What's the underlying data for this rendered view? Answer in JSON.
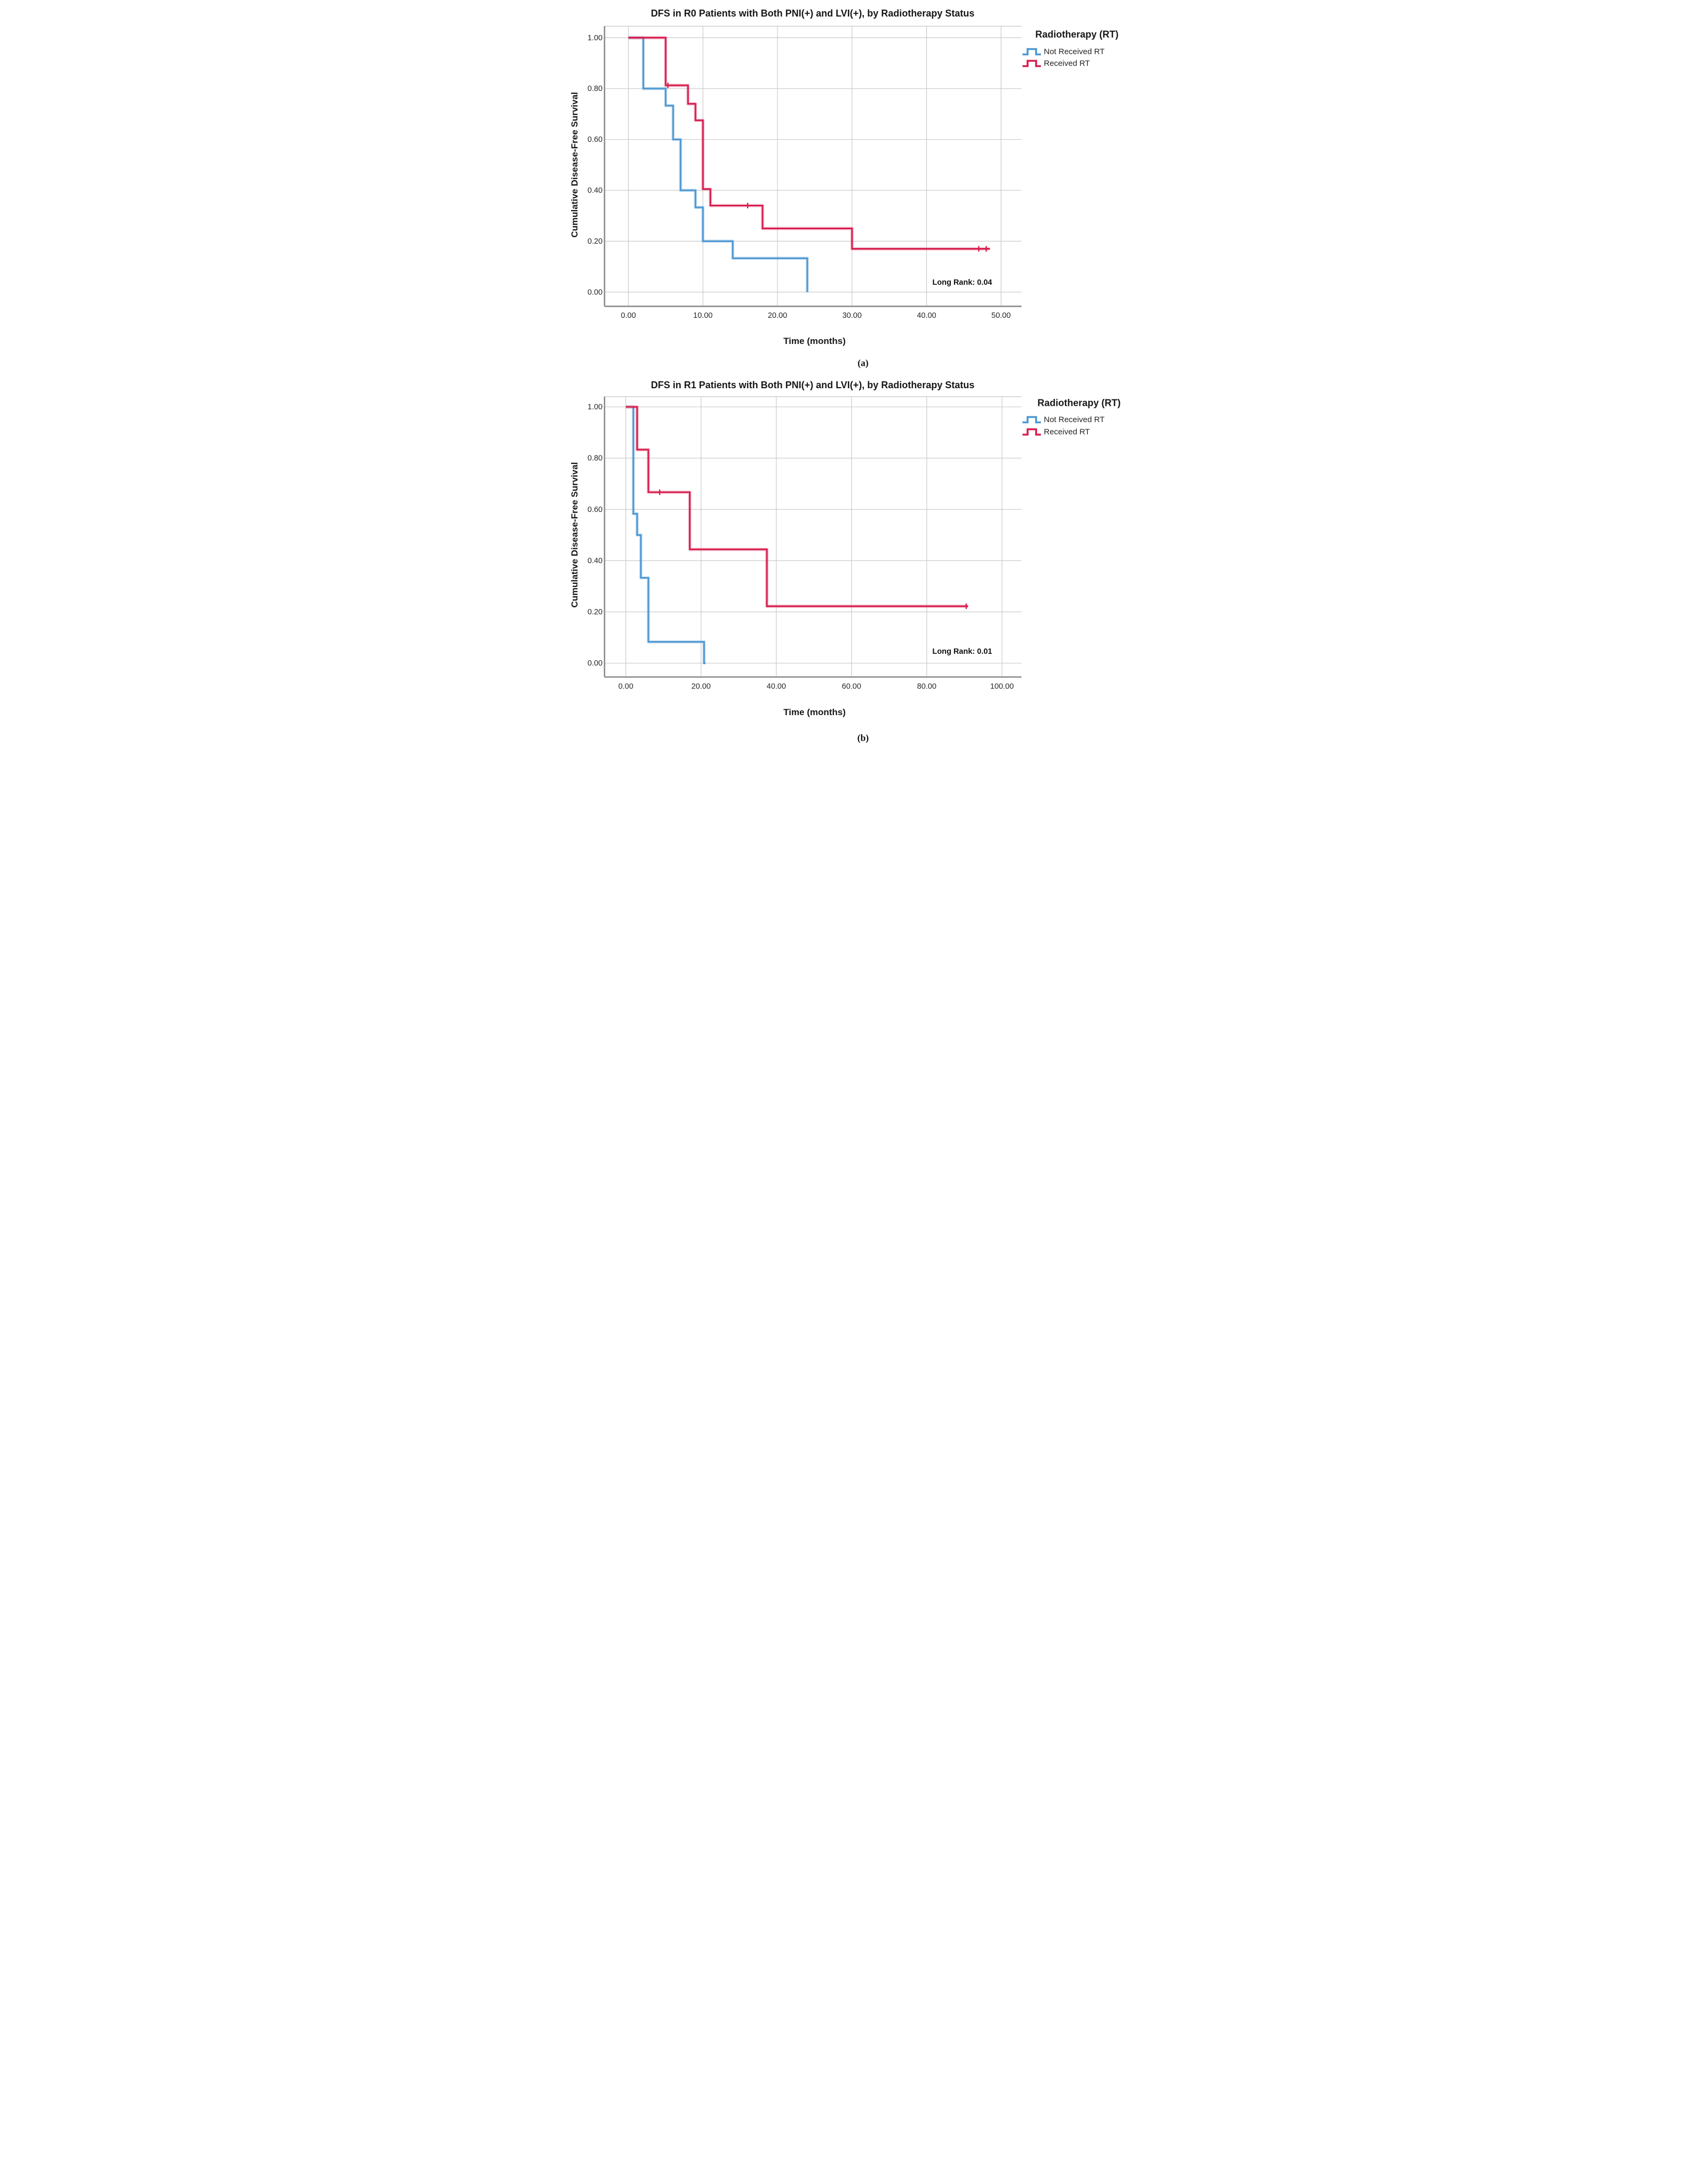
{
  "figure": {
    "captions": {
      "a": "(a)",
      "b": "(b)"
    }
  },
  "chart_data": [
    {
      "type": "km-step",
      "panel": "a",
      "title": "DFS in R0 Patients with Both PNI(+) and LVI(+), by Radiotherapy Status",
      "xlabel": "Time (months)",
      "ylabel": "Cumulative Disease-Free Survival",
      "annotation": "Long Rank: 0.04",
      "grid": true,
      "legend_position": "right-top",
      "legend": {
        "title": "Radiotherapy (RT)",
        "items": [
          {
            "label": "Not Received RT",
            "color": "#4D97D2"
          },
          {
            "label": "Received RT",
            "color": "#D81E4F"
          }
        ]
      },
      "x_ticks": {
        "labels": [
          "0.00",
          "10.00",
          "20.00",
          "30.00",
          "40.00",
          "50.00"
        ],
        "values": [
          0,
          10,
          20,
          30,
          40,
          50
        ]
      },
      "y_ticks": {
        "labels": [
          "1.00",
          "0.80",
          "0.60",
          "0.40",
          "0.20",
          "0.00"
        ],
        "values": [
          1.0,
          0.8,
          0.6,
          0.4,
          0.2,
          0.0
        ]
      },
      "xlim": [
        -3.2,
        52.8
      ],
      "ylim": [
        -0.06,
        1.06
      ],
      "series": [
        {
          "name": "Not Received RT",
          "color": "#4D97D2",
          "start_t": 0,
          "start_v": 1.0,
          "drops": [
            [
              2,
              0.8
            ],
            [
              5,
              0.733
            ],
            [
              6,
              0.6
            ],
            [
              7,
              0.4
            ],
            [
              9,
              0.333
            ],
            [
              10,
              0.2
            ],
            [
              14,
              0.133
            ],
            [
              24,
              0.0
            ]
          ],
          "end_t": 24,
          "censors": []
        },
        {
          "name": "Received RT",
          "color": "#D81E4F",
          "start_t": 0,
          "start_v": 1.0,
          "drops": [
            [
              5,
              0.8125
            ],
            [
              8,
              0.74
            ],
            [
              9,
              0.675
            ],
            [
              10,
              0.405
            ],
            [
              11,
              0.34
            ],
            [
              18,
              0.25
            ],
            [
              30,
              0.17
            ]
          ],
          "end_t": 48.5,
          "censors": [
            [
              5.3,
              0.8125
            ],
            [
              16,
              0.34
            ],
            [
              47,
              0.17
            ],
            [
              48,
              0.17
            ]
          ]
        }
      ]
    },
    {
      "type": "km-step",
      "panel": "b",
      "title": "DFS in R1 Patients with Both PNI(+) and LVI(+), by Radiotherapy Status",
      "xlabel": "Time (months)",
      "ylabel": "Cumulative Disease-Free Survival",
      "annotation": "Long Rank: 0.01",
      "grid": true,
      "legend_position": "right-top",
      "legend": {
        "title": "Radiotherapy (RT)",
        "items": [
          {
            "label": "Not Received RT",
            "color": "#4D97D2"
          },
          {
            "label": "Received RT",
            "color": "#D81E4F"
          }
        ]
      },
      "x_ticks": {
        "labels": [
          "0.00",
          "20.00",
          "40.00",
          "60.00",
          "80.00",
          "100.00"
        ],
        "values": [
          0,
          20,
          40,
          60,
          80,
          100
        ]
      },
      "y_ticks": {
        "labels": [
          "1.00",
          "0.80",
          "0.60",
          "0.40",
          "0.20",
          "0.00"
        ],
        "values": [
          1.0,
          0.8,
          0.6,
          0.4,
          0.2,
          0.0
        ]
      },
      "xlim": [
        -5.7,
        105.2
      ],
      "ylim": [
        -0.055,
        1.04
      ],
      "series": [
        {
          "name": "Not Received RT",
          "color": "#4D97D2",
          "start_t": 0,
          "start_v": 1.0,
          "drops": [
            [
              2,
              0.583
            ],
            [
              3,
              0.5
            ],
            [
              4,
              0.333
            ],
            [
              6,
              0.083
            ],
            [
              20.8,
              0.0
            ]
          ],
          "end_t": 21.2,
          "censors": []
        },
        {
          "name": "Received RT",
          "color": "#D81E4F",
          "start_t": 0,
          "start_v": 1.0,
          "drops": [
            [
              3,
              0.833
            ],
            [
              6,
              0.667
            ],
            [
              17,
              0.444
            ],
            [
              37.5,
              0.222
            ]
          ],
          "end_t": 91,
          "censors": [
            [
              9,
              0.667
            ],
            [
              90.5,
              0.222
            ]
          ]
        }
      ]
    }
  ],
  "style_colors": {
    "gridline": "#C6C6C6",
    "axis_frame": "#8A8A8A",
    "frame_top": "#B8B8B8",
    "blue_series": "#4D97D2",
    "red_series": "#D81E4F"
  }
}
